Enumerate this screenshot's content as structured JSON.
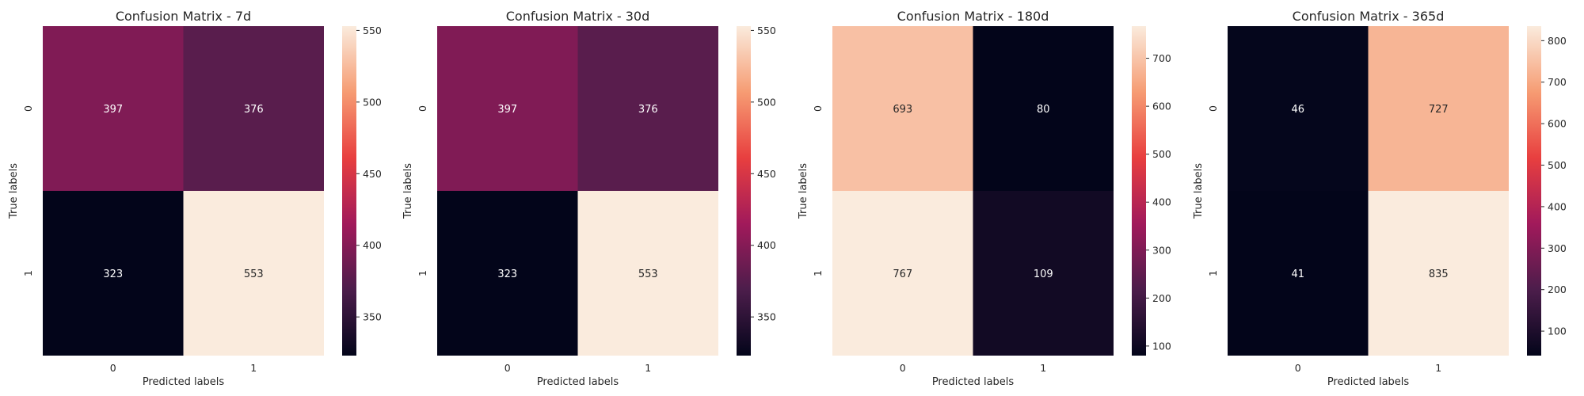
{
  "chart_data": [
    {
      "type": "heatmap",
      "title": "Confusion Matrix - 7d",
      "xlabel": "Predicted labels",
      "ylabel": "True labels",
      "x_categories": [
        "0",
        "1"
      ],
      "y_categories": [
        "0",
        "1"
      ],
      "values": [
        [
          397,
          376
        ],
        [
          323,
          553
        ]
      ],
      "colorbar_range": [
        323,
        553
      ],
      "colorbar_ticks": [
        350,
        400,
        450,
        500,
        550
      ],
      "colormap": "rocket",
      "legend_position": "right colorbar"
    },
    {
      "type": "heatmap",
      "title": "Confusion Matrix - 30d",
      "xlabel": "Predicted labels",
      "ylabel": "True labels",
      "x_categories": [
        "0",
        "1"
      ],
      "y_categories": [
        "0",
        "1"
      ],
      "values": [
        [
          397,
          376
        ],
        [
          323,
          553
        ]
      ],
      "colorbar_range": [
        323,
        553
      ],
      "colorbar_ticks": [
        350,
        400,
        450,
        500,
        550
      ],
      "colormap": "rocket",
      "legend_position": "right colorbar"
    },
    {
      "type": "heatmap",
      "title": "Confusion Matrix - 180d",
      "xlabel": "Predicted labels",
      "ylabel": "True labels",
      "x_categories": [
        "0",
        "1"
      ],
      "y_categories": [
        "0",
        "1"
      ],
      "values": [
        [
          693,
          80
        ],
        [
          767,
          109
        ]
      ],
      "colorbar_range": [
        80,
        767
      ],
      "colorbar_ticks": [
        100,
        200,
        300,
        400,
        500,
        600,
        700
      ],
      "colormap": "rocket",
      "legend_position": "right colorbar"
    },
    {
      "type": "heatmap",
      "title": "Confusion Matrix - 365d",
      "xlabel": "Predicted labels",
      "ylabel": "True labels",
      "x_categories": [
        "0",
        "1"
      ],
      "y_categories": [
        "0",
        "1"
      ],
      "values": [
        [
          46,
          727
        ],
        [
          41,
          835
        ]
      ],
      "colorbar_range": [
        41,
        835
      ],
      "colorbar_ticks": [
        100,
        200,
        300,
        400,
        500,
        600,
        700,
        800
      ],
      "colormap": "rocket",
      "legend_position": "right colorbar"
    }
  ],
  "colors": {
    "colormap_stops": [
      "#03051a",
      "#4c1d4b",
      "#a11a5b",
      "#e83f3f",
      "#f69c73",
      "#faebdd"
    ],
    "light_text": "#ffffff",
    "dark_text": "#262626"
  }
}
